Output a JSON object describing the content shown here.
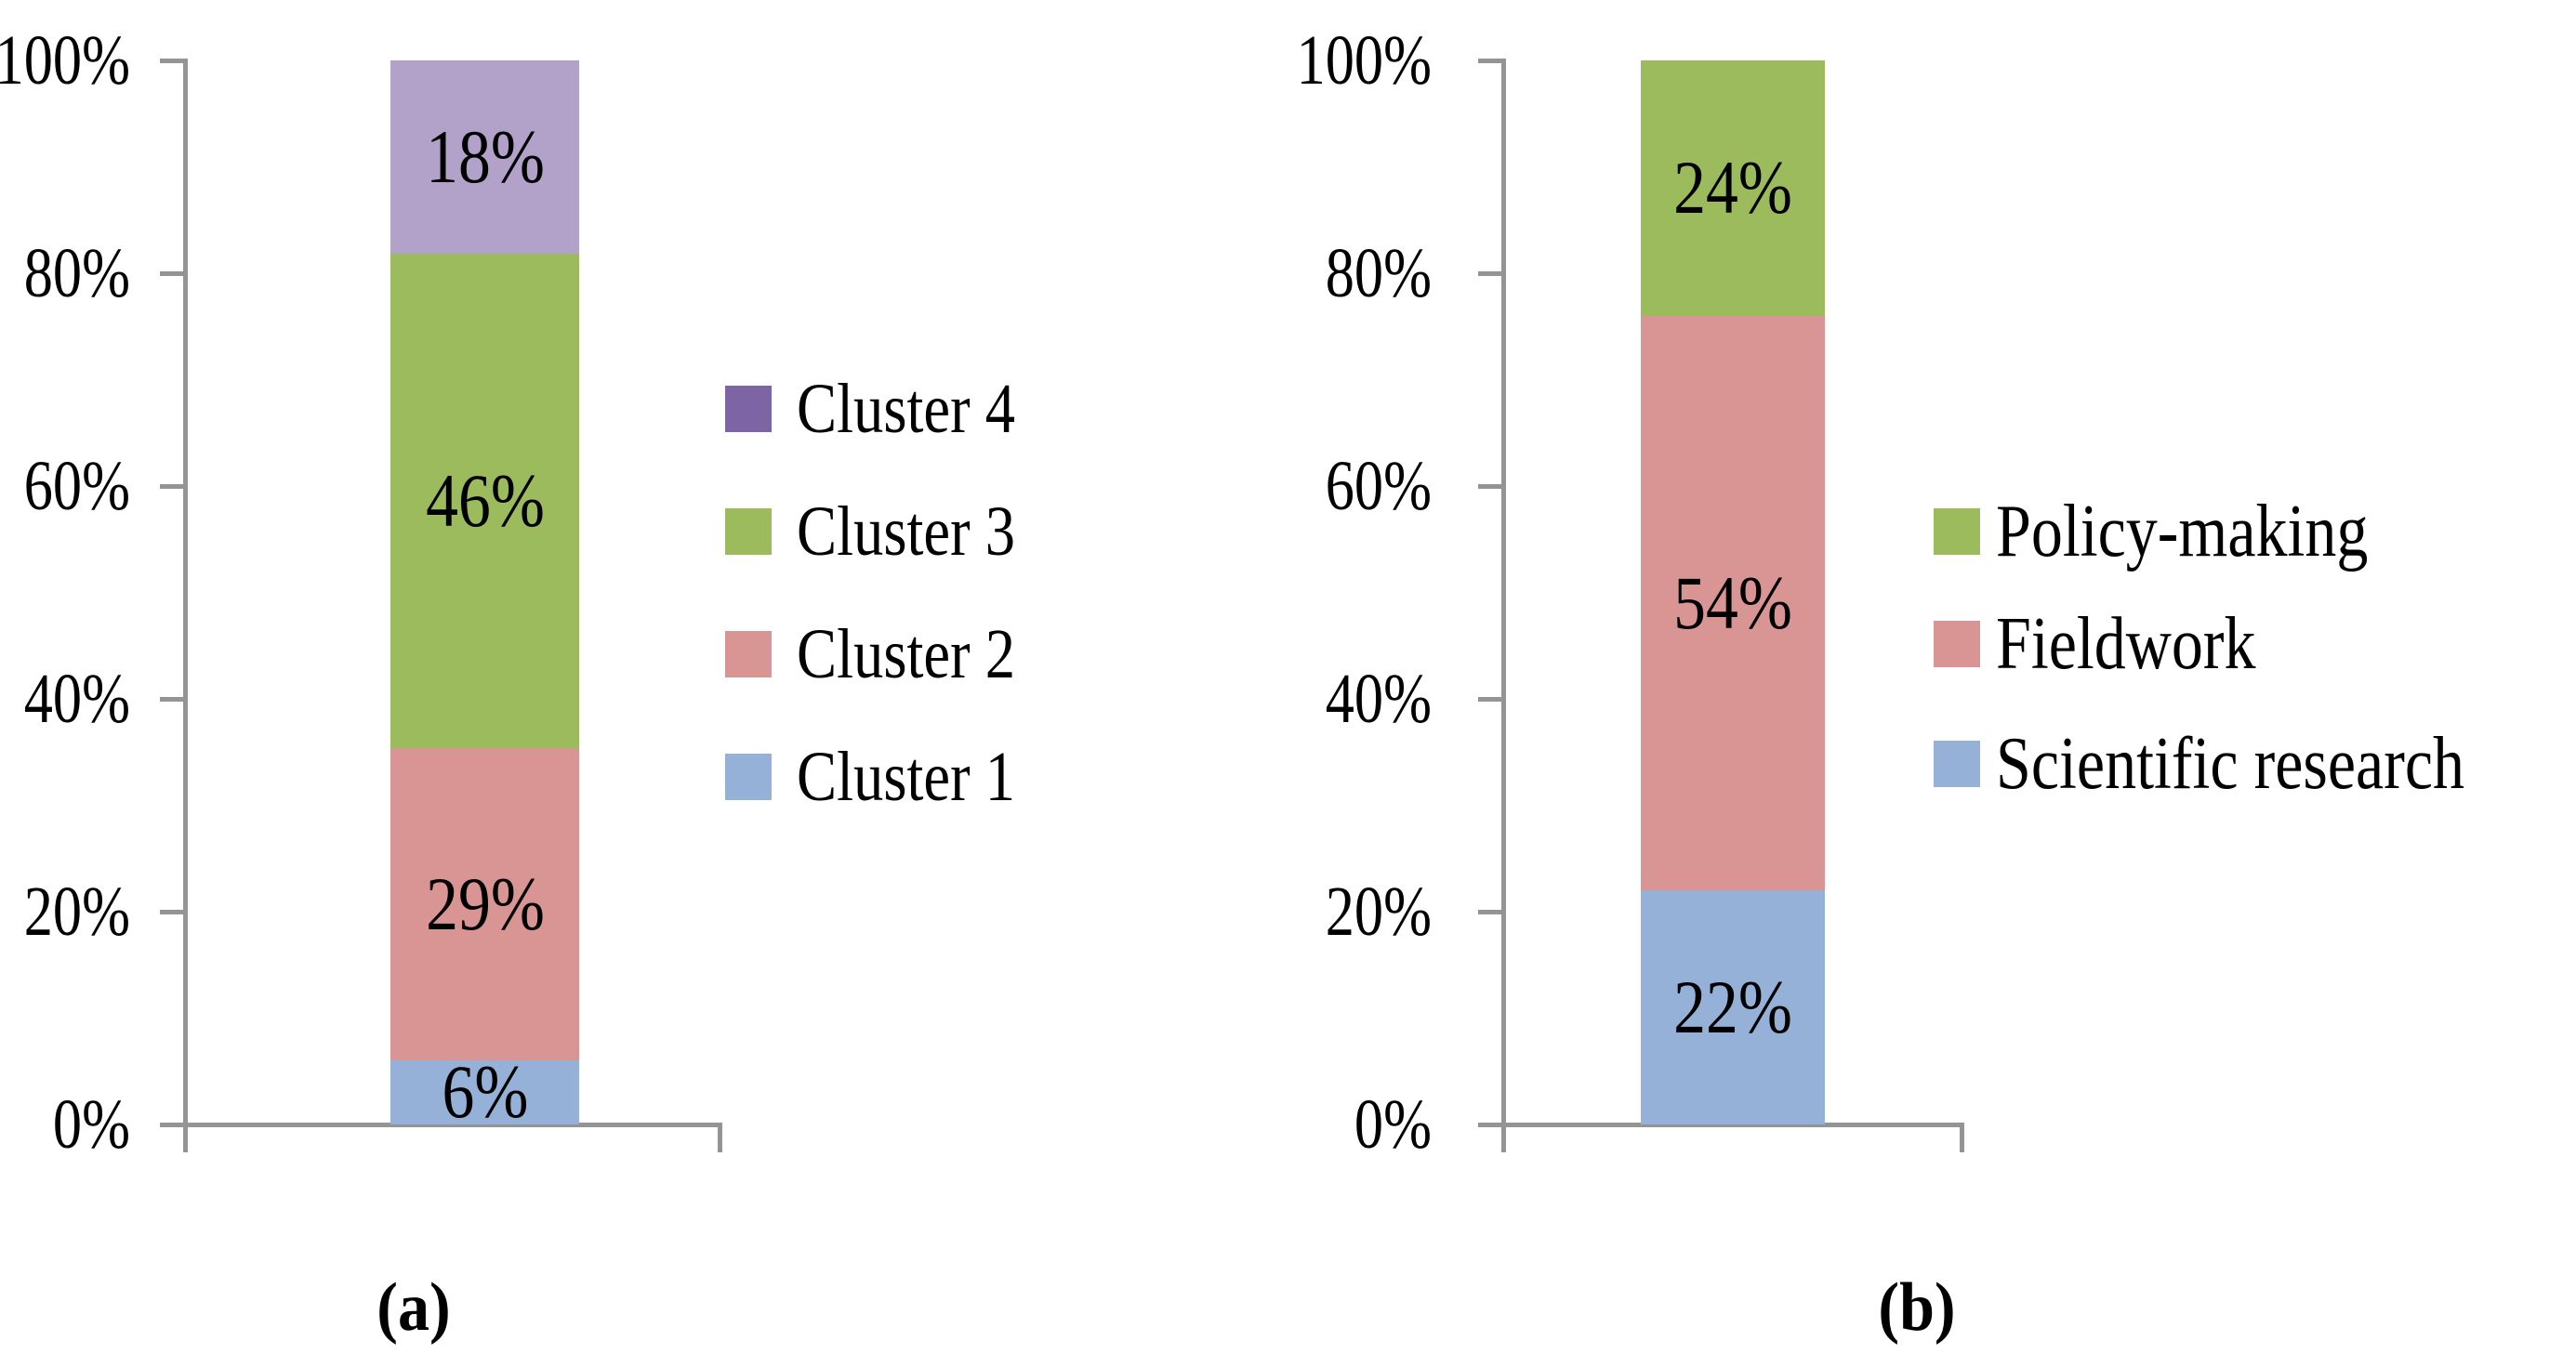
{
  "colors": {
    "axis": "#949494",
    "text": "#000000",
    "blue": "#95B1D7",
    "pink": "#D99594",
    "green": "#9CBB5C",
    "purple_bar": "#B2A1C9",
    "purple_legend": "#7D64A5"
  },
  "chart_data": [
    {
      "type": "bar",
      "stacked": true,
      "percent_stacked": true,
      "panel": "a",
      "caption": "(a)",
      "categories": [
        ""
      ],
      "series": [
        {
          "name": "Cluster 1",
          "values": [
            6
          ],
          "data_label": "6%",
          "color": "#95B1D7"
        },
        {
          "name": "Cluster 2",
          "values": [
            29
          ],
          "data_label": "29%",
          "color": "#D99594"
        },
        {
          "name": "Cluster 3",
          "values": [
            46
          ],
          "data_label": "46%",
          "color": "#9CBB5C"
        },
        {
          "name": "Cluster 4",
          "values": [
            18
          ],
          "data_label": "18%",
          "color": "#B2A1C9"
        }
      ],
      "ylim": [
        0,
        100
      ],
      "yticks": [
        "100%",
        "80%",
        "60%",
        "40%",
        "20%",
        "0%"
      ],
      "xlabel": "",
      "ylabel": "",
      "grid": false,
      "legend": {
        "position": "right",
        "entries": [
          {
            "label": "Cluster 4",
            "color": "#7D64A5"
          },
          {
            "label": "Cluster 3",
            "color": "#9CBB5C"
          },
          {
            "label": "Cluster 2",
            "color": "#D99594"
          },
          {
            "label": "Cluster 1",
            "color": "#95B1D7"
          }
        ]
      }
    },
    {
      "type": "bar",
      "stacked": true,
      "percent_stacked": true,
      "panel": "b",
      "caption": "(b)",
      "categories": [
        ""
      ],
      "series": [
        {
          "name": "Scientific research",
          "values": [
            22
          ],
          "data_label": "22%",
          "color": "#95B1D7"
        },
        {
          "name": "Fieldwork",
          "values": [
            54
          ],
          "data_label": "54%",
          "color": "#D99594"
        },
        {
          "name": "Policy-making",
          "values": [
            24
          ],
          "data_label": "24%",
          "color": "#9CBB5C"
        }
      ],
      "ylim": [
        0,
        100
      ],
      "yticks": [
        "100%",
        "80%",
        "60%",
        "40%",
        "20%",
        "0%"
      ],
      "xlabel": "",
      "ylabel": "",
      "grid": false,
      "legend": {
        "position": "right",
        "entries": [
          {
            "label": "Policy-making",
            "color": "#9CBB5C"
          },
          {
            "label": "Fieldwork",
            "color": "#D99594"
          },
          {
            "label": "Scientific research",
            "color": "#95B1D7"
          }
        ]
      }
    }
  ]
}
